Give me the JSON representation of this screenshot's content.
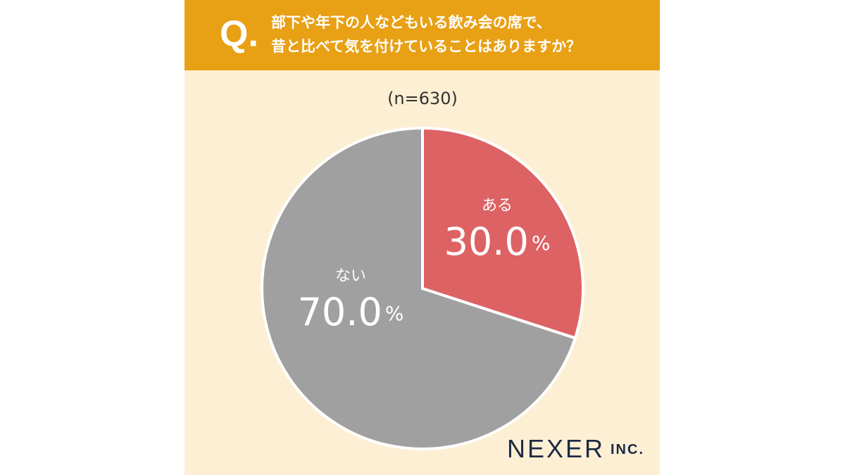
{
  "chart_data": {
    "type": "pie",
    "title_prefix": "Q.",
    "title": [
      "部下や年下の人などもいる飲み会の席で、",
      "昔と比べて気を付けていることはありますか？"
    ],
    "subtitle": "(n=630)",
    "categories": [
      "ある",
      "ない"
    ],
    "values": [
      30.0,
      70.0
    ],
    "value_labels": [
      "30.0%",
      "70.0%"
    ],
    "colors": [
      "#dd6264",
      "#a0a0a0"
    ],
    "brand": "NEXER",
    "brand_suffix": "INC."
  }
}
